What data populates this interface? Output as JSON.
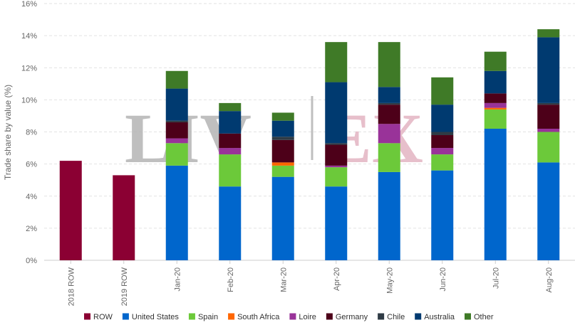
{
  "chart_data": {
    "type": "bar",
    "stacked": true,
    "ylabel": "Trade share by value (%)",
    "ylim": [
      0,
      16
    ],
    "ytick_step": 2,
    "ytick_suffix": "%",
    "grid": true,
    "legend_position": "bottom",
    "categories": [
      "2018 ROW",
      "2019 ROW",
      "Jan-20",
      "Feb-20",
      "Mar-20",
      "Apr-20",
      "May-20",
      "Jun-20",
      "Jul-20",
      "Aug-20"
    ],
    "series": [
      {
        "name": "ROW",
        "color": "#8b0033",
        "values": [
          6.2,
          5.3,
          0,
          0,
          0,
          0,
          0,
          0,
          0,
          0
        ]
      },
      {
        "name": "United States",
        "color": "#0066cc",
        "values": [
          0,
          0,
          5.9,
          4.6,
          5.2,
          4.6,
          5.5,
          5.6,
          8.2,
          6.1
        ]
      },
      {
        "name": "Spain",
        "color": "#6cc93a",
        "values": [
          0,
          0,
          1.4,
          2.0,
          0.7,
          1.2,
          1.8,
          1.0,
          1.2,
          1.9
        ]
      },
      {
        "name": "South Africa",
        "color": "#ff6600",
        "values": [
          0,
          0,
          0,
          0,
          0.2,
          0,
          0,
          0,
          0.1,
          0
        ]
      },
      {
        "name": "Loire",
        "color": "#993399",
        "values": [
          0,
          0,
          0.3,
          0.4,
          0,
          0.1,
          1.2,
          0.4,
          0.3,
          0.2
        ]
      },
      {
        "name": "Germany",
        "color": "#4d0019",
        "values": [
          0,
          0,
          1.0,
          0.9,
          1.4,
          1.3,
          1.2,
          0.8,
          0.6,
          1.5
        ]
      },
      {
        "name": "Chile",
        "color": "#2f3b45",
        "values": [
          0,
          0,
          0.1,
          0,
          0.2,
          0.1,
          0.1,
          0.2,
          0,
          0.1
        ]
      },
      {
        "name": "Australia",
        "color": "#003a70",
        "values": [
          0,
          0,
          2.0,
          1.4,
          1.0,
          3.8,
          1.0,
          1.7,
          1.4,
          4.1
        ]
      },
      {
        "name": "Other",
        "color": "#3f7a27",
        "values": [
          0,
          0,
          1.1,
          0.5,
          0.5,
          2.5,
          2.8,
          1.7,
          1.2,
          0.5
        ]
      }
    ]
  },
  "watermark": {
    "left": "LIV",
    "right": "EX",
    "left_color": "#b5b5b5",
    "right_color": "#e3b5c2"
  }
}
